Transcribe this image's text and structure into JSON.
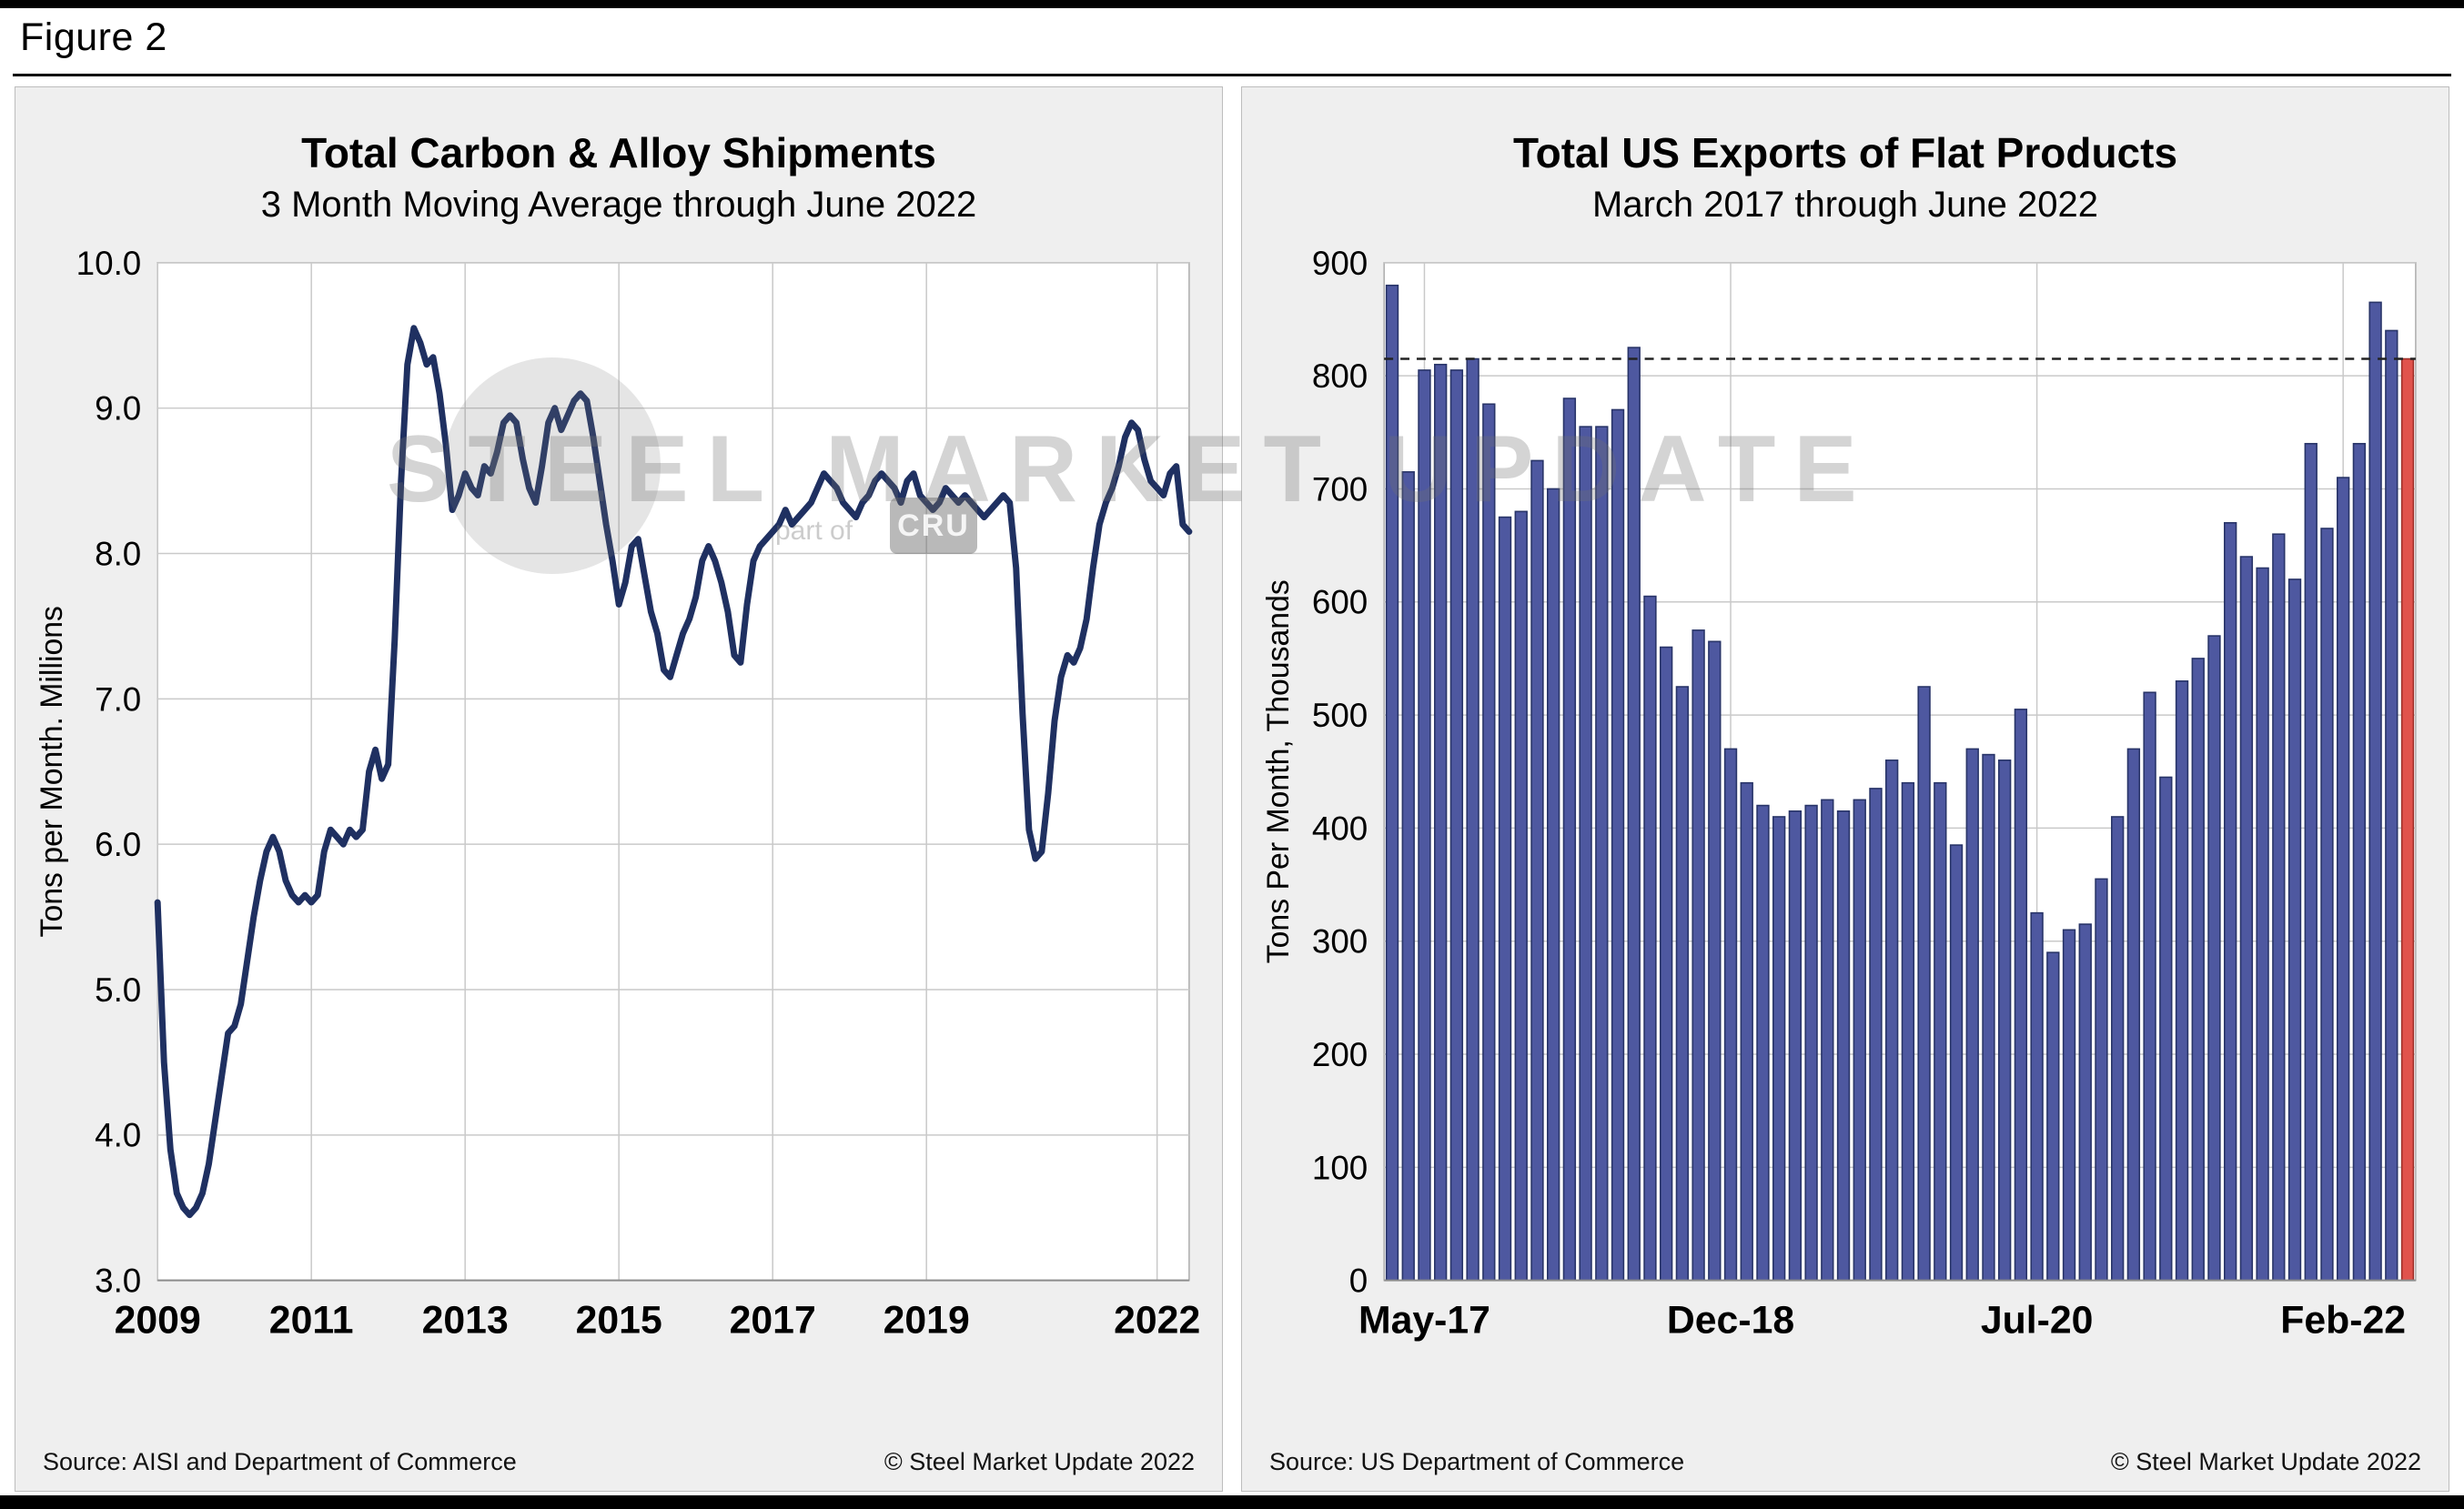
{
  "figure_label": "Figure 2",
  "watermark": {
    "text": "STEEL MARKET UPDATE",
    "badge": "CRU",
    "subtext": "part of"
  },
  "chart_data": [
    {
      "type": "line",
      "title": "Total Carbon & Alloy Shipments",
      "subtitle": "3 Month Moving Average through June 2022",
      "ylabel": "Tons per Month. Millions",
      "xlabel": "",
      "ylim": [
        3.0,
        10.0
      ],
      "ytick_step": 1.0,
      "x_start": "2009-01",
      "x_end": "2022-06",
      "x_freq": "monthly",
      "grid": true,
      "line_color": "#1F3061",
      "xticks": [
        {
          "label": "2009",
          "month_index": 0
        },
        {
          "label": "2011",
          "month_index": 24
        },
        {
          "label": "2013",
          "month_index": 48
        },
        {
          "label": "2015",
          "month_index": 72
        },
        {
          "label": "2017",
          "month_index": 96
        },
        {
          "label": "2019",
          "month_index": 120
        },
        {
          "label": "2022",
          "month_index": 156
        }
      ],
      "values": [
        5.6,
        4.5,
        3.9,
        3.6,
        3.5,
        3.45,
        3.5,
        3.6,
        3.8,
        4.1,
        4.4,
        4.7,
        4.75,
        4.9,
        5.2,
        5.5,
        5.75,
        5.95,
        6.05,
        5.95,
        5.75,
        5.65,
        5.6,
        5.65,
        5.6,
        5.65,
        5.95,
        6.1,
        6.05,
        6.0,
        6.1,
        6.05,
        6.1,
        6.5,
        6.65,
        6.45,
        6.55,
        7.4,
        8.5,
        9.3,
        9.55,
        9.45,
        9.3,
        9.35,
        9.1,
        8.75,
        8.3,
        8.4,
        8.55,
        8.45,
        8.4,
        8.6,
        8.55,
        8.7,
        8.9,
        8.95,
        8.9,
        8.65,
        8.45,
        8.35,
        8.6,
        8.9,
        9.0,
        8.85,
        8.95,
        9.05,
        9.1,
        9.05,
        8.8,
        8.5,
        8.2,
        7.95,
        7.65,
        7.8,
        8.05,
        8.1,
        7.85,
        7.6,
        7.45,
        7.2,
        7.15,
        7.3,
        7.45,
        7.55,
        7.7,
        7.95,
        8.05,
        7.95,
        7.8,
        7.6,
        7.3,
        7.25,
        7.65,
        7.95,
        8.05,
        8.1,
        8.15,
        8.2,
        8.3,
        8.2,
        8.25,
        8.3,
        8.35,
        8.45,
        8.55,
        8.5,
        8.45,
        8.35,
        8.3,
        8.25,
        8.35,
        8.4,
        8.5,
        8.55,
        8.5,
        8.45,
        8.35,
        8.5,
        8.55,
        8.4,
        8.35,
        8.3,
        8.35,
        8.45,
        8.4,
        8.35,
        8.4,
        8.35,
        8.3,
        8.25,
        8.3,
        8.35,
        8.4,
        8.35,
        7.9,
        6.9,
        6.1,
        5.9,
        5.95,
        6.35,
        6.85,
        7.15,
        7.3,
        7.25,
        7.35,
        7.55,
        7.9,
        8.2,
        8.35,
        8.45,
        8.6,
        8.8,
        8.9,
        8.85,
        8.65,
        8.5,
        8.45,
        8.4,
        8.55,
        8.6,
        8.2,
        8.15
      ],
      "source": "Source: AISI and Department of Commerce",
      "copyright": "© Steel Market Update 2022"
    },
    {
      "type": "bar",
      "title": "Total US Exports of Flat Products",
      "subtitle": "March 2017 through June 2022",
      "ylabel": "Tons Per Month, Thousands",
      "xlabel": "",
      "ylim": [
        0,
        900
      ],
      "ytick_step": 100,
      "x_start": "2017-03",
      "x_end": "2022-06",
      "x_freq": "monthly",
      "grid": true,
      "bar_color": "#4E58A0",
      "bar_border": "#283468",
      "highlight_index": 63,
      "highlight_color": "#E0534C",
      "highlight_border": "#9E2F28",
      "reference_line": {
        "value": 815,
        "style": "dashed",
        "color": "#222222"
      },
      "xticks": [
        {
          "label": "May-17",
          "bar_index": 2
        },
        {
          "label": "Dec-18",
          "bar_index": 21
        },
        {
          "label": "Jul-20",
          "bar_index": 40
        },
        {
          "label": "Feb-22",
          "bar_index": 59
        }
      ],
      "values": [
        880,
        715,
        805,
        810,
        805,
        815,
        775,
        675,
        680,
        725,
        700,
        780,
        755,
        755,
        770,
        825,
        605,
        560,
        525,
        575,
        565,
        470,
        440,
        420,
        410,
        415,
        420,
        425,
        415,
        425,
        435,
        460,
        440,
        525,
        440,
        385,
        470,
        465,
        460,
        505,
        325,
        290,
        310,
        315,
        355,
        410,
        470,
        520,
        445,
        530,
        550,
        570,
        670,
        640,
        630,
        660,
        620,
        740,
        665,
        710,
        740,
        865,
        840,
        815
      ],
      "source": "Source: US Department of Commerce",
      "copyright": "© Steel Market Update 2022"
    }
  ]
}
